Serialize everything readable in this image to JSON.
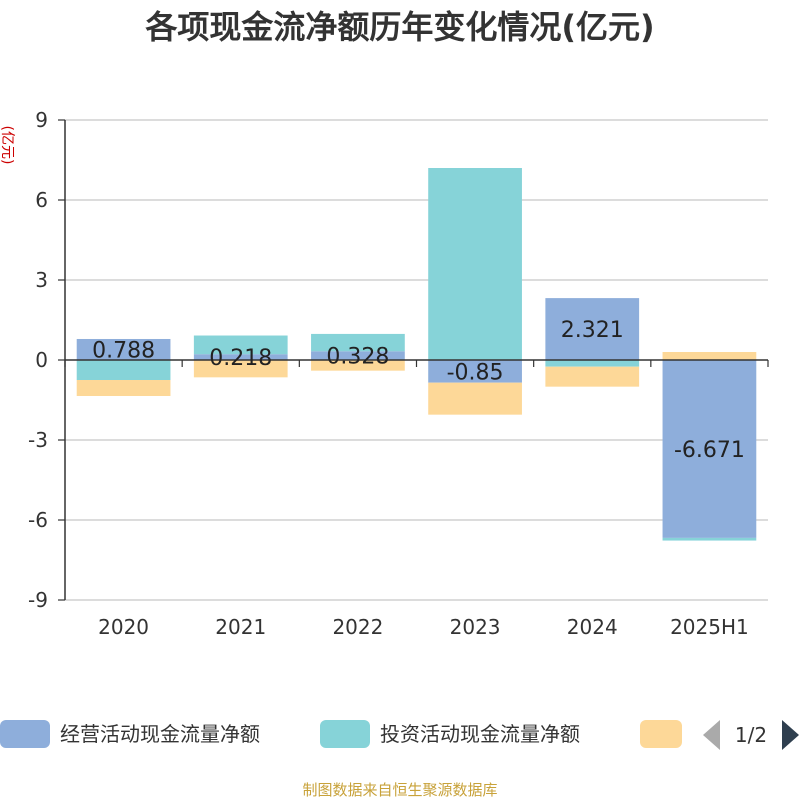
{
  "chart_data": {
    "type": "bar",
    "stacked": true,
    "title": "各项现金流净额历年变化情况(亿元)",
    "ylabel": "(亿元)",
    "xlabel": "",
    "categories": [
      "2020",
      "2021",
      "2022",
      "2023",
      "2024",
      "2025H1"
    ],
    "ylim": [
      -9,
      9
    ],
    "yticks": [
      9,
      6,
      3,
      0,
      -3,
      -6,
      -9
    ],
    "grid": true,
    "legend_position": "bottom",
    "series": [
      {
        "name": "经营活动现金流量净额",
        "color": "#8eaedb",
        "values": [
          0.788,
          0.218,
          0.328,
          -0.85,
          2.321,
          -6.671
        ],
        "labels": [
          "0.788",
          "0.218",
          "0.328",
          "-0.85",
          "2.321",
          "-6.671"
        ]
      },
      {
        "name": "投资活动现金流量净额",
        "color": "#86d3d8",
        "values": [
          -0.75,
          0.7,
          0.65,
          7.2,
          -0.25,
          -0.1
        ],
        "labels": []
      },
      {
        "name": "",
        "color": "#fdd898",
        "values": [
          -0.6,
          -0.65,
          -0.4,
          -1.2,
          -0.75,
          0.3
        ],
        "labels": []
      }
    ]
  },
  "legend": {
    "page": "1/2"
  },
  "source": "制图数据来自恒生聚源数据库"
}
